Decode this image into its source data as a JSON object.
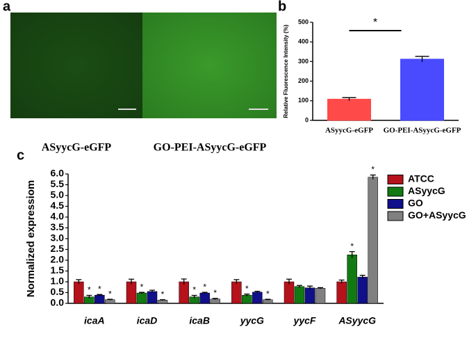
{
  "images": {
    "panel": "a",
    "captions": [
      "ASyycG-eGFP",
      "GO-PEI-ASyycG-eGFP"
    ]
  },
  "chart_data": [
    {
      "panel": "b",
      "type": "bar",
      "ylabel": "Relative Fluorescence Intensity (%)",
      "categories": [
        "ASyycG-eGFP",
        "GO-PEI-ASyycG-eGFP"
      ],
      "values": [
        108,
        312
      ],
      "errors": [
        8,
        14
      ],
      "colors": [
        "#ff4a4a",
        "#4a4aff"
      ],
      "ylim": [
        0,
        500
      ],
      "yticks": [
        0,
        100,
        200,
        300,
        400,
        500
      ],
      "significance": "*"
    },
    {
      "panel": "c",
      "type": "grouped_bar",
      "ylabel": "Normalized expressiom",
      "categories": [
        "icaA",
        "icaD",
        "icaB",
        "yycG",
        "yycF",
        "ASyycG"
      ],
      "series": [
        {
          "name": "ATCC",
          "color": "#b5121b",
          "values": [
            1.0,
            1.0,
            1.0,
            1.0,
            1.0,
            1.0
          ],
          "errors": [
            0.1,
            0.12,
            0.13,
            0.1,
            0.12,
            0.08
          ],
          "annotations": [
            null,
            null,
            null,
            null,
            null,
            null
          ]
        },
        {
          "name": "ASyycG",
          "color": "#127a12",
          "values": [
            0.3,
            0.48,
            0.3,
            0.38,
            0.78,
            2.25
          ],
          "errors": [
            0.07,
            0.03,
            0.07,
            0.05,
            0.05,
            0.15
          ],
          "annotations": [
            "*",
            "*",
            "*",
            "*",
            null,
            "*"
          ]
        },
        {
          "name": "GO",
          "color": "#10108a",
          "values": [
            0.38,
            0.55,
            0.48,
            0.52,
            0.72,
            1.22
          ],
          "errors": [
            0.03,
            0.06,
            0.03,
            0.04,
            0.08,
            0.08
          ],
          "annotations": [
            "*",
            null,
            "*",
            null,
            null,
            null
          ]
        },
        {
          "name": "GO+ASyycG",
          "color": "#808080",
          "values": [
            0.17,
            0.15,
            0.2,
            0.17,
            0.7,
            5.85
          ],
          "errors": [
            0.02,
            0.02,
            0.03,
            0.02,
            0.03,
            0.1
          ],
          "annotations": [
            "*",
            "*",
            "*",
            "*",
            null,
            "*"
          ]
        }
      ],
      "ylim": [
        0,
        6
      ],
      "yticks": [
        {
          "value": 0,
          "label": "0.0"
        },
        0.5,
        {
          "value": 1,
          "label": "1.0"
        },
        1.5,
        {
          "value": 2,
          "label": "2.0"
        },
        2.5,
        {
          "value": 3,
          "label": "3.0"
        },
        3.5,
        {
          "value": 4,
          "label": "4.0"
        },
        4.5,
        {
          "value": 5,
          "label": "5.0"
        },
        5.5,
        {
          "value": 6,
          "label": "6.0"
        }
      ]
    }
  ]
}
